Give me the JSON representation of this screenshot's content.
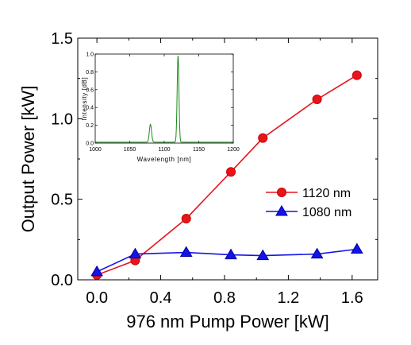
{
  "chart_data": [
    {
      "type": "line",
      "title": "",
      "xlabel": "976 nm Pump Power [kW]",
      "ylabel": "Output Power [kW]",
      "xlim": [
        -0.12,
        1.76
      ],
      "ylim": [
        0,
        1.5
      ],
      "xticks": [
        0.0,
        0.4,
        0.8,
        1.2,
        1.6
      ],
      "xtick_labels": [
        "0.0",
        "0.4",
        "0.8",
        "1.2",
        "1.6"
      ],
      "yticks": [
        0.0,
        0.5,
        1.0,
        1.5
      ],
      "ytick_labels": [
        "0.0",
        "0.5",
        "1.0",
        "1.5"
      ],
      "grid": false,
      "legend_position": "center-right",
      "series": [
        {
          "name": "1120 nm",
          "color": "#e8141c",
          "marker": "circle",
          "x": [
            0.0,
            0.24,
            0.56,
            0.84,
            1.04,
            1.38,
            1.63
          ],
          "y": [
            0.03,
            0.12,
            0.38,
            0.67,
            0.88,
            1.12,
            1.27
          ]
        },
        {
          "name": "1080 nm",
          "color": "#1414e6",
          "marker": "triangle",
          "x": [
            0.0,
            0.24,
            0.56,
            0.84,
            1.04,
            1.38,
            1.63
          ],
          "y": [
            0.05,
            0.16,
            0.17,
            0.155,
            0.15,
            0.16,
            0.19
          ]
        }
      ]
    },
    {
      "type": "line",
      "title": "",
      "xlabel": "Wavelength [nm]",
      "ylabel": "Intensity [dB]",
      "xlim": [
        1000,
        1200
      ],
      "ylim": [
        0,
        1.0
      ],
      "xticks": [
        1000,
        1050,
        1100,
        1150,
        1200
      ],
      "xtick_labels": [
        "1000",
        "1050",
        "1100",
        "1150",
        "1200"
      ],
      "yticks": [
        0.0,
        0.2,
        0.4,
        0.6,
        0.8,
        1.0
      ],
      "ytick_labels": [
        "0.0",
        "0.2",
        "0.4",
        "0.6",
        "0.8",
        "1.0"
      ],
      "grid": false,
      "series": [
        {
          "color": "#1a8a1a",
          "peaks": [
            {
              "center": 1080,
              "height": 0.2,
              "width": 1.6
            },
            {
              "center": 1120,
              "height": 0.97,
              "width": 1.3
            }
          ],
          "baseline": 0.01
        }
      ]
    }
  ]
}
